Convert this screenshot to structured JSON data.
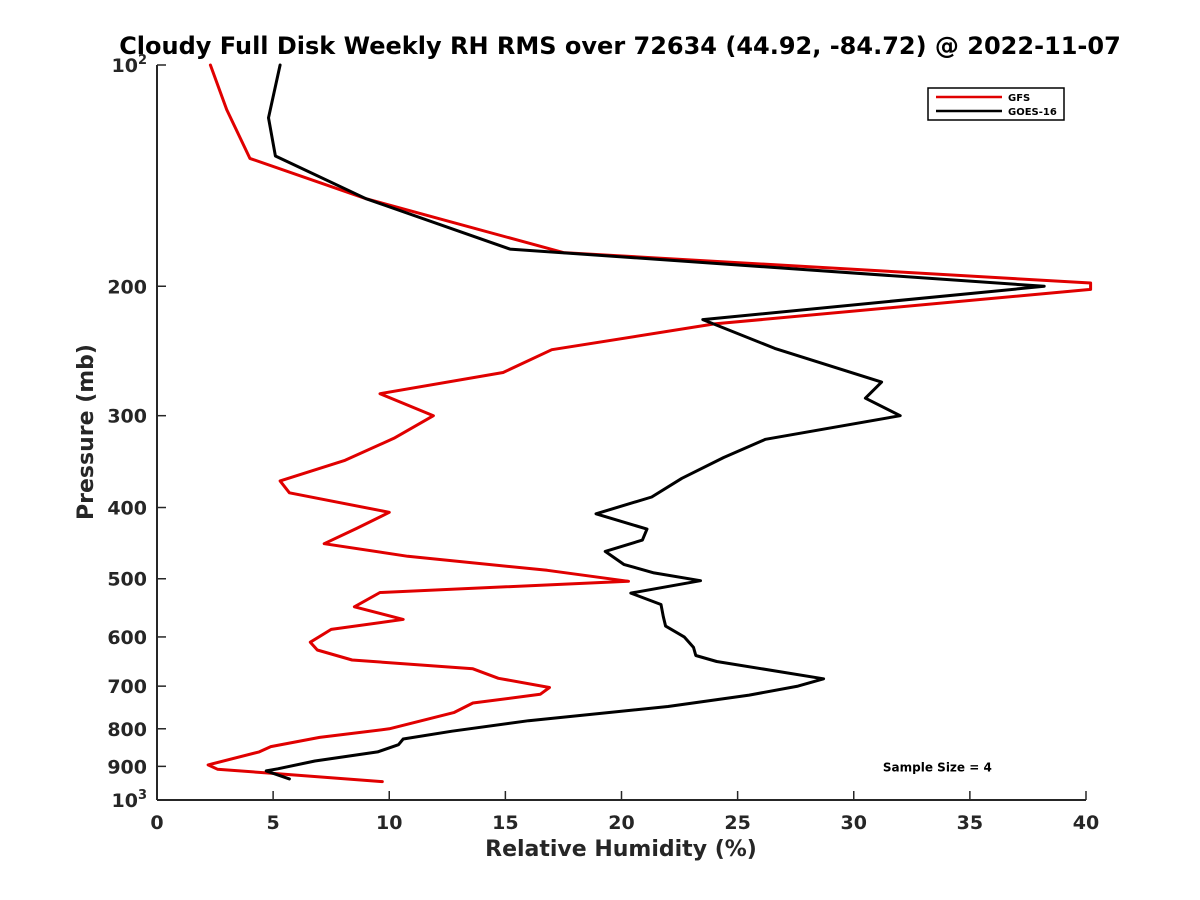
{
  "chart_data": {
    "type": "line",
    "title": "Cloudy Full Disk Weekly RH RMS over 72634 (44.92, -84.72) @ 2022-11-07",
    "xlabel": "Relative Humidity (%)",
    "ylabel": "Pressure (mb)",
    "xlim": [
      0,
      40
    ],
    "ylim": [
      100,
      1000
    ],
    "y_scale": "log",
    "y_reversed": true,
    "x_ticks": [
      0,
      5,
      10,
      15,
      20,
      25,
      30,
      35,
      40
    ],
    "y_ticks": [
      {
        "value": 100,
        "base": "10",
        "exp": "2"
      },
      {
        "value": 200,
        "label": "200"
      },
      {
        "value": 300,
        "label": "300"
      },
      {
        "value": 400,
        "label": "400"
      },
      {
        "value": 500,
        "label": "500"
      },
      {
        "value": 600,
        "label": "600"
      },
      {
        "value": 700,
        "label": "700"
      },
      {
        "value": 800,
        "label": "800"
      },
      {
        "value": 900,
        "label": "900"
      },
      {
        "value": 1000,
        "base": "10",
        "exp": "3"
      }
    ],
    "grid": false,
    "legend_position": "top-right",
    "series": [
      {
        "name": "GFS",
        "color": "#e00000",
        "points": [
          [
            2.3,
            100
          ],
          [
            3.0,
            115
          ],
          [
            4.0,
            134
          ],
          [
            9.0,
            152
          ],
          [
            17.5,
            180
          ],
          [
            40.2,
            198
          ],
          [
            40.2,
            202
          ],
          [
            24.0,
            225
          ],
          [
            17.0,
            244
          ],
          [
            14.9,
            262
          ],
          [
            9.6,
            280
          ],
          [
            11.9,
            300
          ],
          [
            10.2,
            322
          ],
          [
            8.1,
            345
          ],
          [
            5.3,
            368
          ],
          [
            5.7,
            382
          ],
          [
            10.0,
            406
          ],
          [
            8.6,
            427
          ],
          [
            7.2,
            448
          ],
          [
            10.8,
            466
          ],
          [
            16.8,
            487
          ],
          [
            20.3,
            504
          ],
          [
            9.6,
            522
          ],
          [
            8.5,
            546
          ],
          [
            10.6,
            568
          ],
          [
            7.5,
            586
          ],
          [
            6.6,
            610
          ],
          [
            6.9,
            625
          ],
          [
            8.4,
            645
          ],
          [
            13.6,
            663
          ],
          [
            14.7,
            683
          ],
          [
            16.9,
            703
          ],
          [
            16.5,
            718
          ],
          [
            13.6,
            738
          ],
          [
            12.8,
            760
          ],
          [
            10.0,
            800
          ],
          [
            7.0,
            822
          ],
          [
            4.9,
            846
          ],
          [
            4.4,
            860
          ],
          [
            2.2,
            896
          ],
          [
            2.6,
            908
          ],
          [
            5.0,
            920
          ],
          [
            9.7,
            944
          ]
        ]
      },
      {
        "name": "GOES-16",
        "color": "#000000",
        "points": [
          [
            5.3,
            100
          ],
          [
            4.8,
            118
          ],
          [
            5.1,
            133
          ],
          [
            9.0,
            152
          ],
          [
            15.2,
            178
          ],
          [
            38.2,
            200
          ],
          [
            23.5,
            222
          ],
          [
            26.6,
            243
          ],
          [
            31.2,
            270
          ],
          [
            30.5,
            284
          ],
          [
            32.0,
            300
          ],
          [
            26.2,
            323
          ],
          [
            24.4,
            342
          ],
          [
            22.6,
            365
          ],
          [
            21.3,
            387
          ],
          [
            18.9,
            408
          ],
          [
            21.1,
            428
          ],
          [
            20.9,
            443
          ],
          [
            19.3,
            459
          ],
          [
            20.1,
            478
          ],
          [
            21.4,
            491
          ],
          [
            23.4,
            503
          ],
          [
            20.4,
            523
          ],
          [
            21.7,
            542
          ],
          [
            21.8,
            563
          ],
          [
            21.9,
            580
          ],
          [
            22.7,
            600
          ],
          [
            23.1,
            620
          ],
          [
            23.2,
            636
          ],
          [
            24.1,
            648
          ],
          [
            28.7,
            684
          ],
          [
            27.6,
            700
          ],
          [
            25.5,
            720
          ],
          [
            22.0,
            746
          ],
          [
            16.0,
            780
          ],
          [
            12.7,
            806
          ],
          [
            10.6,
            826
          ],
          [
            10.4,
            841
          ],
          [
            9.5,
            860
          ],
          [
            6.8,
            885
          ],
          [
            5.2,
            907
          ],
          [
            4.7,
            913
          ],
          [
            5.7,
            936
          ]
        ]
      }
    ],
    "annotations": [
      {
        "text": "Sample Size = 4",
        "x": 33.6,
        "y": 900
      }
    ]
  }
}
